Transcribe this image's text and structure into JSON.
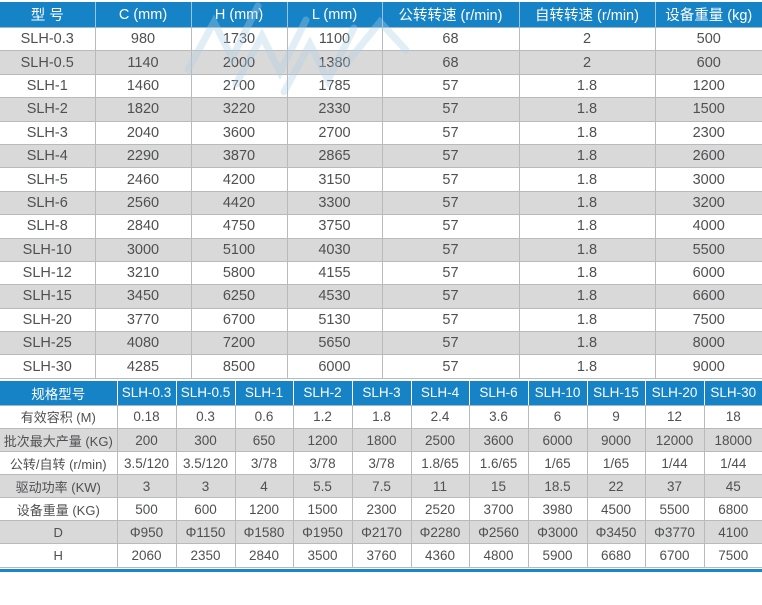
{
  "colors": {
    "header_bg": "#1583c5",
    "alt_row_bg": "#d9d9d9",
    "grid_line": "#b9babb",
    "body_text": "#4f5052",
    "header_text": "#ffffff",
    "bottom_rule": "#1b87cb"
  },
  "dimension_table": {
    "columns": [
      "型 号",
      "C (mm)",
      "H (mm)",
      "L (mm)",
      "公转转速 (r/min)",
      "自转转速 (r/min)",
      "设备重量 (kg)"
    ],
    "rows": [
      [
        "SLH-0.3",
        "980",
        "1730",
        "1100",
        "68",
        "2",
        "500"
      ],
      [
        "SLH-0.5",
        "1140",
        "2000",
        "1380",
        "68",
        "2",
        "600"
      ],
      [
        "SLH-1",
        "1460",
        "2700",
        "1785",
        "57",
        "1.8",
        "1200"
      ],
      [
        "SLH-2",
        "1820",
        "3220",
        "2330",
        "57",
        "1.8",
        "1500"
      ],
      [
        "SLH-3",
        "2040",
        "3600",
        "2700",
        "57",
        "1.8",
        "2300"
      ],
      [
        "SLH-4",
        "2290",
        "3870",
        "2865",
        "57",
        "1.8",
        "2600"
      ],
      [
        "SLH-5",
        "2460",
        "4200",
        "3150",
        "57",
        "1.8",
        "3000"
      ],
      [
        "SLH-6",
        "2560",
        "4420",
        "3300",
        "57",
        "1.8",
        "3200"
      ],
      [
        "SLH-8",
        "2840",
        "4750",
        "3750",
        "57",
        "1.8",
        "4000"
      ],
      [
        "SLH-10",
        "3000",
        "5100",
        "4030",
        "57",
        "1.8",
        "5500"
      ],
      [
        "SLH-12",
        "3210",
        "5800",
        "4155",
        "57",
        "1.8",
        "6000"
      ],
      [
        "SLH-15",
        "3450",
        "6250",
        "4530",
        "57",
        "1.8",
        "6600"
      ],
      [
        "SLH-20",
        "3770",
        "6700",
        "5130",
        "57",
        "1.8",
        "7500"
      ],
      [
        "SLH-25",
        "4080",
        "7200",
        "5650",
        "57",
        "1.8",
        "8000"
      ],
      [
        "SLH-30",
        "4285",
        "8500",
        "6000",
        "57",
        "1.8",
        "9000"
      ]
    ]
  },
  "spec_table": {
    "columns": [
      "规格型号",
      "SLH-0.3",
      "SLH-0.5",
      "SLH-1",
      "SLH-2",
      "SLH-3",
      "SLH-4",
      "SLH-6",
      "SLH-10",
      "SLH-15",
      "SLH-20",
      "SLH-30"
    ],
    "rows": [
      [
        "有效容积 (M)",
        "0.18",
        "0.3",
        "0.6",
        "1.2",
        "1.8",
        "2.4",
        "3.6",
        "6",
        "9",
        "12",
        "18"
      ],
      [
        "批次最大产量 (KG)",
        "200",
        "300",
        "650",
        "1200",
        "1800",
        "2500",
        "3600",
        "6000",
        "9000",
        "12000",
        "18000"
      ],
      [
        "公转/自转 (r/min)",
        "3.5/120",
        "3.5/120",
        "3/78",
        "3/78",
        "3/78",
        "1.8/65",
        "1.6/65",
        "1/65",
        "1/65",
        "1/44",
        "1/44"
      ],
      [
        "驱动功率 (KW)",
        "3",
        "3",
        "4",
        "5.5",
        "7.5",
        "11",
        "15",
        "18.5",
        "22",
        "37",
        "45"
      ],
      [
        "设备重量 (KG)",
        "500",
        "600",
        "1200",
        "1500",
        "2300",
        "2520",
        "3700",
        "3980",
        "4500",
        "5500",
        "6800"
      ],
      [
        "D",
        "Φ950",
        "Φ1150",
        "Φ1580",
        "Φ1950",
        "Φ2170",
        "Φ2280",
        "Φ2560",
        "Φ3000",
        "Φ3450",
        "Φ3770",
        "4100"
      ],
      [
        "H",
        "2060",
        "2350",
        "2840",
        "3500",
        "3760",
        "4360",
        "4800",
        "5900",
        "6680",
        "6700",
        "7500"
      ]
    ]
  }
}
